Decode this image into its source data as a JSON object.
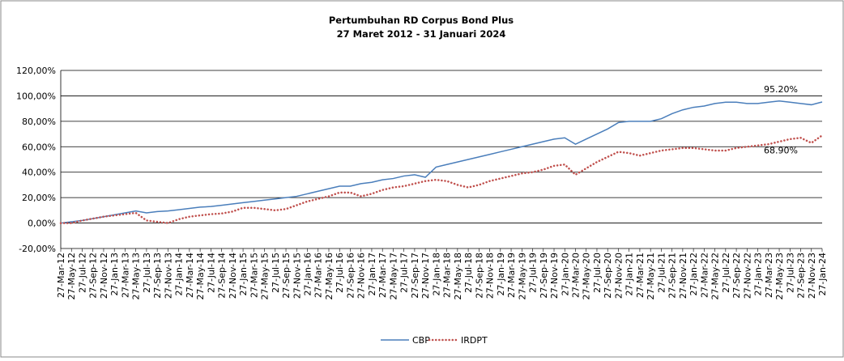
{
  "chart_data": {
    "type": "line",
    "title": "Pertumbuhan RD Corpus Bond Plus",
    "subtitle": "27 Maret 2012 - 31 Januari 2024",
    "categories": [
      "27-Mar-12",
      "27-May-12",
      "27-Jul-12",
      "27-Sep-12",
      "27-Nov-12",
      "27-Jan-13",
      "27-Mar-13",
      "27-May-13",
      "27-Jul-13",
      "27-Sep-13",
      "27-Nov-13",
      "27-Jan-14",
      "27-Mar-14",
      "27-May-14",
      "27-Jul-14",
      "27-Sep-14",
      "27-Nov-14",
      "27-Jan-15",
      "27-Mar-15",
      "27-May-15",
      "27-Jul-15",
      "27-Sep-15",
      "27-Nov-15",
      "27-Jan-16",
      "27-Mar-16",
      "27-May-16",
      "27-Jul-16",
      "27-Sep-16",
      "27-Nov-16",
      "27-Jan-17",
      "27-Mar-17",
      "27-May-17",
      "27-Jul-17",
      "27-Sep-17",
      "27-Nov-17",
      "27-Jan-18",
      "27-Mar-18",
      "27-May-18",
      "27-Jul-18",
      "27-Sep-18",
      "27-Nov-18",
      "27-Jan-19",
      "27-Mar-19",
      "27-May-19",
      "27-Jul-19",
      "27-Sep-19",
      "27-Nov-19",
      "27-Jan-20",
      "27-Mar-20",
      "27-May-20",
      "27-Jul-20",
      "27-Sep-20",
      "27-Nov-20",
      "27-Jan-21",
      "27-Mar-21",
      "27-May-21",
      "27-Jul-21",
      "27-Sep-21",
      "27-Nov-21",
      "27-Jan-22",
      "27-Mar-22",
      "27-May-22",
      "27-Jul-22",
      "27-Sep-22",
      "27-Nov-22",
      "27-Jan-23",
      "27-Mar-23",
      "27-May-23",
      "27-Jul-23",
      "27-Sep-23",
      "27-Nov-23",
      "27-Jan-24"
    ],
    "series": [
      {
        "name": "CBP",
        "color": "#4a7ebb",
        "dashed": false,
        "values": [
          0,
          1,
          2,
          3.5,
          5,
          6.5,
          8,
          9.5,
          8,
          9,
          9.5,
          10.5,
          11.5,
          12.5,
          13,
          14,
          15,
          16,
          17,
          18,
          19,
          20,
          21,
          23,
          25,
          27,
          29,
          29,
          31,
          32,
          34,
          35,
          37,
          38,
          36,
          44,
          46,
          48,
          50,
          52,
          54,
          56,
          58,
          60,
          62,
          64,
          66,
          67,
          62,
          66,
          70,
          74,
          79,
          80,
          80,
          80,
          82,
          86,
          89,
          91,
          92,
          94,
          95,
          95,
          94,
          94,
          95,
          96,
          95,
          94,
          93,
          95.2
        ],
        "value_labels": [
          null,
          null,
          null,
          null,
          null,
          null,
          null,
          null,
          null,
          null,
          null,
          null,
          null,
          null,
          null,
          null,
          null,
          null,
          null,
          null,
          null,
          null,
          null,
          null,
          null,
          null,
          null,
          null,
          null,
          null,
          null,
          null,
          null,
          null,
          null,
          null,
          null,
          null,
          null,
          null,
          null,
          null,
          null,
          null,
          null,
          null,
          null,
          null,
          null,
          null,
          null,
          null,
          null,
          null,
          null,
          null,
          null,
          null,
          null,
          null,
          null,
          null,
          null,
          null,
          null,
          null,
          null,
          null,
          null,
          null,
          null,
          "95.20%"
        ]
      },
      {
        "name": "IRDPT",
        "color": "#c0504d",
        "dashed": true,
        "values": [
          0,
          0,
          2,
          3.5,
          5,
          6,
          7,
          8,
          2,
          1,
          0,
          3,
          5,
          6,
          7,
          7.5,
          9,
          12,
          12,
          11,
          10,
          11,
          14,
          17,
          19,
          21,
          24,
          24,
          21,
          23,
          26,
          28,
          29,
          31,
          33,
          34,
          33,
          30,
          28,
          30,
          33,
          35,
          37,
          39,
          40,
          42,
          45,
          46,
          38,
          43,
          48,
          52,
          56,
          55,
          53,
          55,
          57,
          58,
          59,
          59,
          58,
          57,
          57,
          59,
          60,
          61,
          62,
          64,
          66,
          67,
          63,
          68.9
        ],
        "value_labels": [
          null,
          null,
          null,
          null,
          null,
          null,
          null,
          null,
          null,
          null,
          null,
          null,
          null,
          null,
          null,
          null,
          null,
          null,
          null,
          null,
          null,
          null,
          null,
          null,
          null,
          null,
          null,
          null,
          null,
          null,
          null,
          null,
          null,
          null,
          null,
          null,
          null,
          null,
          null,
          null,
          null,
          null,
          null,
          null,
          null,
          null,
          null,
          null,
          null,
          null,
          null,
          null,
          null,
          null,
          null,
          null,
          null,
          null,
          null,
          null,
          null,
          null,
          null,
          null,
          null,
          null,
          null,
          null,
          null,
          null,
          null,
          "68.90%"
        ]
      }
    ],
    "ylim": [
      -20,
      120
    ],
    "yticks": [
      {
        "value": -20,
        "label": "-20,00%"
      },
      {
        "value": 0,
        "label": "0,00%"
      },
      {
        "value": 20,
        "label": "20,00%"
      },
      {
        "value": 40,
        "label": "40,00%"
      },
      {
        "value": 60,
        "label": "60,00%"
      },
      {
        "value": 80,
        "label": "80,00%"
      },
      {
        "value": 100,
        "label": "100,00%"
      },
      {
        "value": 120,
        "label": "120,00%"
      }
    ],
    "grid": true,
    "legend": "bottom"
  }
}
